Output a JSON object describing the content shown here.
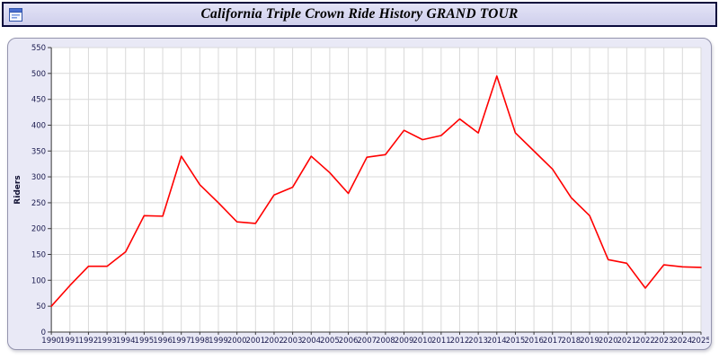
{
  "window": {
    "title": "California Triple Crown Ride History GRAND TOUR"
  },
  "colors": {
    "line": "#ff0000",
    "axis_text": "#1a1a4e",
    "axis_line": "#3a3a3a",
    "grid": "#d9d9d9",
    "plot_bg": "#ffffff",
    "panel_bg": "#e9e9f6",
    "titlebar_bg": "#d8d8f0"
  },
  "chart_data": {
    "type": "line",
    "title": "California Triple Crown Ride History GRAND TOUR",
    "xlabel": "",
    "ylabel": "Riders",
    "ylim": [
      0,
      550
    ],
    "ytick_step": 50,
    "grid": true,
    "legend": "none",
    "x": [
      1990,
      1991,
      1992,
      1993,
      1994,
      1995,
      1996,
      1997,
      1998,
      1999,
      2000,
      2001,
      2002,
      2003,
      2004,
      2005,
      2006,
      2007,
      2008,
      2009,
      2010,
      2011,
      2012,
      2013,
      2014,
      2015,
      2016,
      2017,
      2018,
      2019,
      2020,
      2021,
      2022,
      2023,
      2024,
      2025
    ],
    "series": [
      {
        "name": "Riders",
        "color": "#ff0000",
        "values": [
          50,
          90,
          127,
          127,
          155,
          225,
          224,
          340,
          285,
          250,
          213,
          210,
          265,
          280,
          340,
          308,
          268,
          338,
          343,
          390,
          372,
          380,
          412,
          385,
          495,
          385,
          350,
          315,
          260,
          225,
          140,
          133,
          85,
          130,
          126,
          125
        ]
      }
    ]
  }
}
